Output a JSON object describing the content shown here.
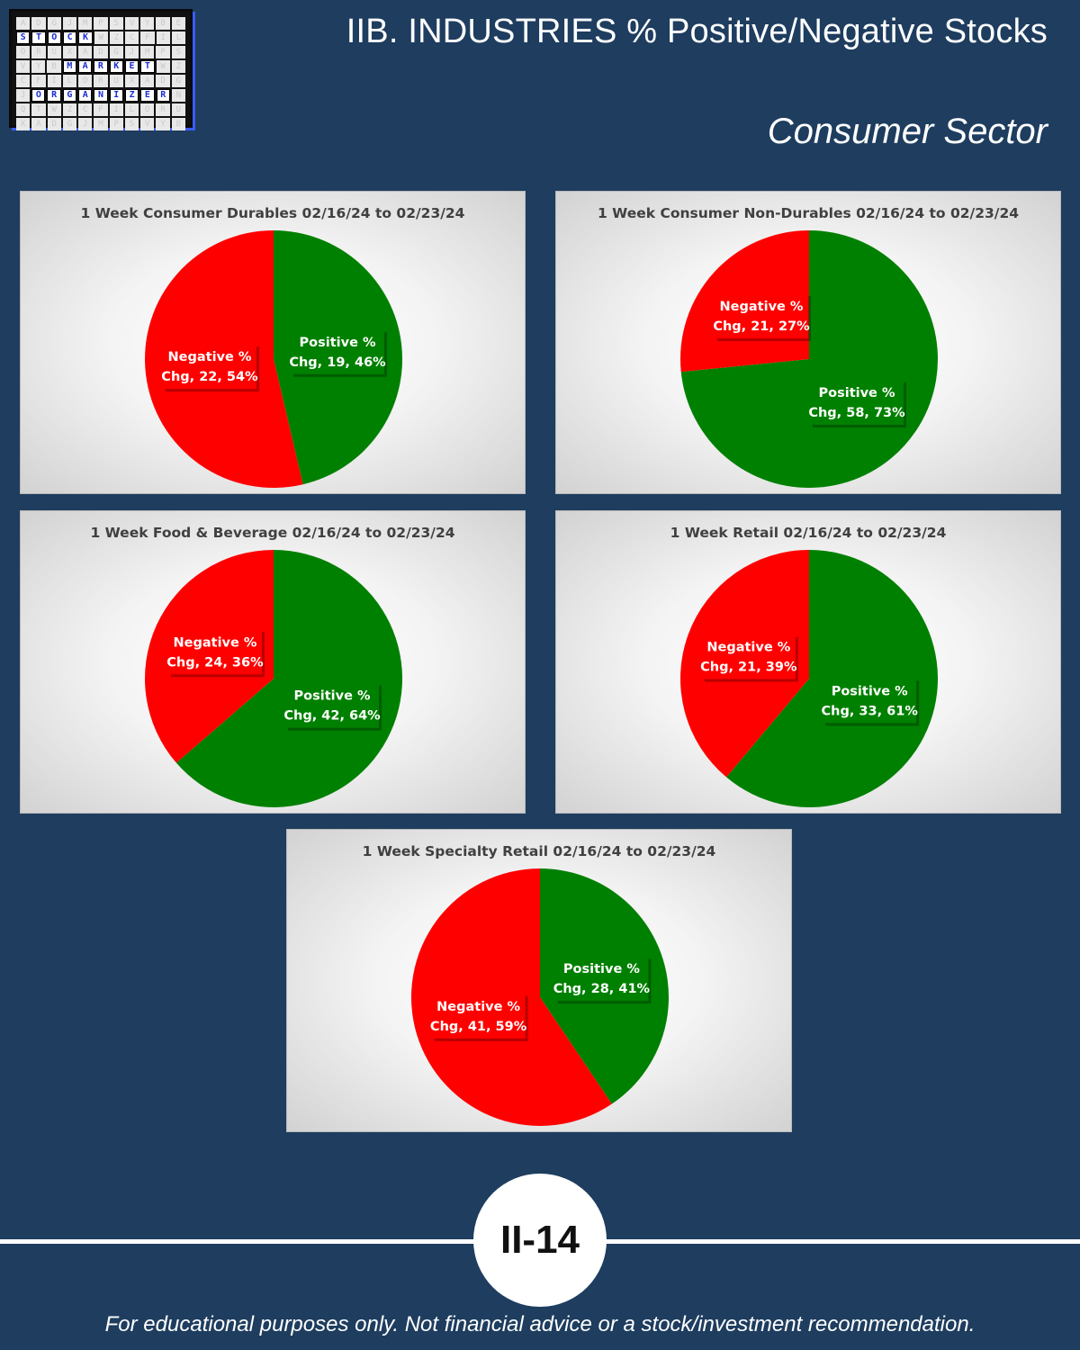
{
  "header": {
    "title": "IIB. INDUSTRIES % Positive/Negative Stocks",
    "subtitle": "Consumer Sector"
  },
  "logo": {
    "words": [
      "STOCK",
      "MARKET",
      "ORGANIZER"
    ]
  },
  "colors": {
    "positive": "#008000",
    "negative": "#ff0000",
    "background": "#1e3d5f"
  },
  "chart_data": [
    {
      "type": "pie",
      "title": "1 Week Consumer Durables 02/16/24 to 02/23/24",
      "slices": [
        {
          "name": "Positive % Chg",
          "value": 19,
          "percent": 46,
          "label_line1": "Positive %",
          "label_line2": "Chg, 19, 46%"
        },
        {
          "name": "Negative % Chg",
          "value": 22,
          "percent": 54,
          "label_line1": "Negative %",
          "label_line2": "Chg, 22, 54%"
        }
      ]
    },
    {
      "type": "pie",
      "title": "1 Week Consumer Non-Durables 02/16/24 to 02/23/24",
      "slices": [
        {
          "name": "Positive % Chg",
          "value": 58,
          "percent": 73,
          "label_line1": "Positive %",
          "label_line2": "Chg, 58, 73%"
        },
        {
          "name": "Negative % Chg",
          "value": 21,
          "percent": 27,
          "label_line1": "Negative %",
          "label_line2": "Chg, 21, 27%"
        }
      ]
    },
    {
      "type": "pie",
      "title": "1 Week Food & Beverage 02/16/24 to 02/23/24",
      "slices": [
        {
          "name": "Positive % Chg",
          "value": 42,
          "percent": 64,
          "label_line1": "Positive %",
          "label_line2": "Chg, 42, 64%"
        },
        {
          "name": "Negative % Chg",
          "value": 24,
          "percent": 36,
          "label_line1": "Negative %",
          "label_line2": "Chg, 24, 36%"
        }
      ]
    },
    {
      "type": "pie",
      "title": "1 Week Retail 02/16/24 to 02/23/24",
      "slices": [
        {
          "name": "Positive % Chg",
          "value": 33,
          "percent": 61,
          "label_line1": "Positive %",
          "label_line2": "Chg, 33, 61%"
        },
        {
          "name": "Negative % Chg",
          "value": 21,
          "percent": 39,
          "label_line1": "Negative %",
          "label_line2": "Chg, 21, 39%"
        }
      ]
    },
    {
      "type": "pie",
      "title": "1 Week Specialty Retail 02/16/24 to 02/23/24",
      "slices": [
        {
          "name": "Positive % Chg",
          "value": 28,
          "percent": 41,
          "label_line1": "Positive %",
          "label_line2": "Chg, 28, 41%"
        },
        {
          "name": "Negative % Chg",
          "value": 41,
          "percent": 59,
          "label_line1": "Negative %",
          "label_line2": "Chg, 41, 59%"
        }
      ]
    }
  ],
  "footer": {
    "page_number": "II-14",
    "disclaimer": "For educational purposes only. Not financial advice or a stock/investment recommendation."
  }
}
